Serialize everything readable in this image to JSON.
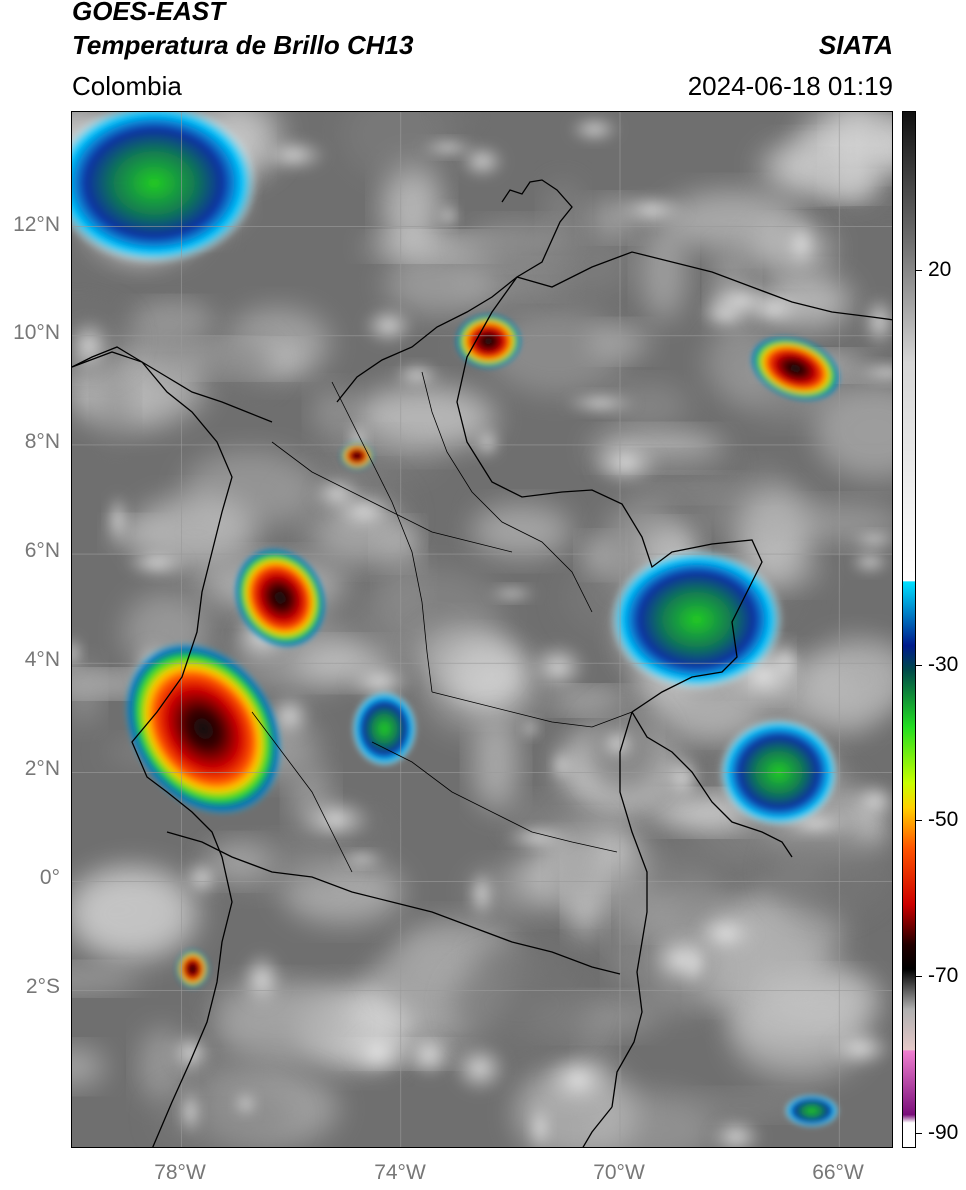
{
  "header": {
    "satellite": "GOES-EAST",
    "product": "Temperatura de Brillo CH13",
    "source": "SIATA",
    "region": "Colombia",
    "timestamp": "2024-06-18 01:19"
  },
  "map": {
    "lat_range": [
      -4.9,
      14.1
    ],
    "lon_range": [
      -80.0,
      -65.0
    ],
    "lat_ticks": [
      "12°N",
      "10°N",
      "8°N",
      "6°N",
      "4°N",
      "2°N",
      "0°",
      "2°S"
    ],
    "lon_ticks": [
      "78°W",
      "74°W",
      "70°W",
      "66°W"
    ],
    "background_color": "#6f6f6f",
    "grid": true
  },
  "colorbar": {
    "labels": [
      "20",
      "-30",
      "-50",
      "-70",
      "-90"
    ],
    "range": [
      -92,
      36
    ],
    "gradient": [
      {
        "v": 36,
        "c": "#111111"
      },
      {
        "v": 20,
        "c": "#6e6e6e"
      },
      {
        "v": 5,
        "c": "#d6d6d6"
      },
      {
        "v": -22,
        "c": "#ffffff"
      },
      {
        "v": -22.1,
        "c": "#00e0ff"
      },
      {
        "v": -30,
        "c": "#001a8c"
      },
      {
        "v": -33,
        "c": "#004a4a"
      },
      {
        "v": -40,
        "c": "#22dd22"
      },
      {
        "v": -47,
        "c": "#c8ff00"
      },
      {
        "v": -50,
        "c": "#ffd000"
      },
      {
        "v": -55,
        "c": "#ff5500"
      },
      {
        "v": -62,
        "c": "#cc0000"
      },
      {
        "v": -67,
        "c": "#220000"
      },
      {
        "v": -70,
        "c": "#000000"
      },
      {
        "v": -75,
        "c": "#b0b0b0"
      },
      {
        "v": -80,
        "c": "#e6c9c9"
      },
      {
        "v": -80.1,
        "c": "#f07fd0"
      },
      {
        "v": -88,
        "c": "#7a0f7a"
      },
      {
        "v": -89,
        "c": "#ffffff"
      }
    ]
  },
  "storm_cells": [
    {
      "name": "west-coast-band",
      "lon": -77.6,
      "lat": 2.8,
      "rx": 1.3,
      "ry": 1.7,
      "rot": -35
    },
    {
      "name": "choco-cell",
      "lon": -76.2,
      "lat": 5.2,
      "rx": 0.8,
      "ry": 0.95,
      "rot": -30
    },
    {
      "name": "la-guajira-cell",
      "lon": -72.4,
      "lat": 9.9,
      "rx": 0.6,
      "ry": 0.5,
      "rot": 0
    },
    {
      "name": "venezuela-cell",
      "lon": -66.8,
      "lat": 9.4,
      "rx": 0.85,
      "ry": 0.55,
      "rot": 20
    },
    {
      "name": "antioquia-cell",
      "lon": -74.8,
      "lat": 7.8,
      "rx": 0.3,
      "ry": 0.25,
      "rot": 0
    },
    {
      "name": "ecuador-cell",
      "lon": -77.8,
      "lat": -1.6,
      "rx": 0.3,
      "ry": 0.35,
      "rot": 0
    }
  ],
  "cold_clouds": [
    {
      "name": "caribbean-cloud",
      "lon": -78.5,
      "lat": 12.8,
      "rx": 1.9,
      "ry": 1.5
    },
    {
      "name": "orinoquia-cloud",
      "lon": -68.6,
      "lat": 4.8,
      "rx": 1.6,
      "ry": 1.3
    },
    {
      "name": "vichada-cloud",
      "lon": -67.1,
      "lat": 2.0,
      "rx": 1.1,
      "ry": 1.0
    },
    {
      "name": "meta-cloud",
      "lon": -74.3,
      "lat": 2.8,
      "rx": 0.6,
      "ry": 0.7
    },
    {
      "name": "amazon-cloud",
      "lon": -66.5,
      "lat": -4.2,
      "rx": 0.5,
      "ry": 0.3
    }
  ],
  "colors": {
    "border": "#000000",
    "grid": "#9a9a9a",
    "axis_label": "#777777"
  }
}
